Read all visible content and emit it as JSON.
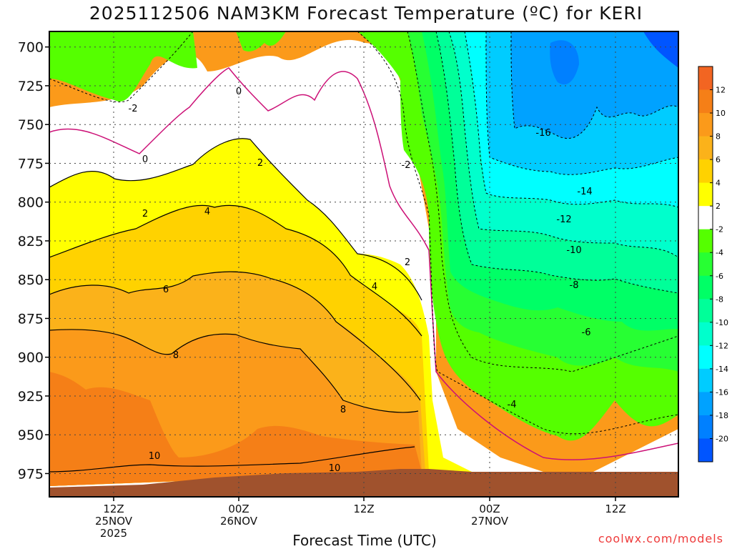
{
  "title": "2025112506 NAM3KM Forecast Temperature (ºC) for KERI",
  "chart_data": {
    "type": "heatmap",
    "title": "2025112506 NAM3KM Forecast Temperature (ºC) for KERI",
    "xlabel": "Forecast Time (UTC)",
    "ylabel": "",
    "y_axis": {
      "ticks": [
        700,
        725,
        750,
        775,
        800,
        825,
        850,
        875,
        900,
        925,
        950,
        975
      ],
      "ylim": [
        690,
        990
      ],
      "inverted": true
    },
    "x_axis": {
      "ticks": [
        {
          "line1": "12Z",
          "line2": "25NOV",
          "line3": "2025"
        },
        {
          "line1": "00Z",
          "line2": "26NOV",
          "line3": ""
        },
        {
          "line1": "12Z",
          "line2": "",
          "line3": ""
        },
        {
          "line1": "00Z",
          "line2": "27NOV",
          "line3": ""
        },
        {
          "line1": "12Z",
          "line2": "",
          "line3": ""
        }
      ]
    },
    "grid": true,
    "colorbar": {
      "tick_labels": [
        "12",
        "10",
        "8",
        "6",
        "4",
        "2",
        "-2",
        "-4",
        "-6",
        "-8",
        "-10",
        "-12",
        "-14",
        "-16",
        "-18",
        "-20"
      ],
      "bins": [
        {
          "lo": 12,
          "hi": 14,
          "color": "#f26522"
        },
        {
          "lo": 10,
          "hi": 12,
          "color": "#f57f17"
        },
        {
          "lo": 8,
          "hi": 10,
          "color": "#fb9a1a"
        },
        {
          "lo": 6,
          "hi": 8,
          "color": "#fbb21a"
        },
        {
          "lo": 4,
          "hi": 6,
          "color": "#ffd200"
        },
        {
          "lo": 2,
          "hi": 4,
          "color": "#ffff00"
        },
        {
          "lo": -2,
          "hi": 2,
          "color": "#ffffff"
        },
        {
          "lo": -4,
          "hi": -2,
          "color": "#55ff00"
        },
        {
          "lo": -6,
          "hi": -4,
          "color": "#27ff33"
        },
        {
          "lo": -8,
          "hi": -6,
          "color": "#00ff66"
        },
        {
          "lo": -10,
          "hi": -8,
          "color": "#00ff99"
        },
        {
          "lo": -12,
          "hi": -10,
          "color": "#00ffcc"
        },
        {
          "lo": -14,
          "hi": -12,
          "color": "#00ffff"
        },
        {
          "lo": -16,
          "hi": -14,
          "color": "#00ccff"
        },
        {
          "lo": -18,
          "hi": -16,
          "color": "#00a2ff"
        },
        {
          "lo": -20,
          "hi": -18,
          "color": "#0080ff"
        },
        {
          "lo": -22,
          "hi": -20,
          "color": "#0055ff"
        }
      ]
    },
    "contour_labels": [
      "-2",
      "0",
      "2",
      "4",
      "6",
      "8",
      "10",
      "-16",
      "-14",
      "-12",
      "-10",
      "-8",
      "-6",
      "-4",
      "-2",
      "4",
      "2",
      "0",
      "2",
      "8",
      "10"
    ],
    "ground_color": "#a0522d"
  },
  "credit": "coolwx.com/models"
}
